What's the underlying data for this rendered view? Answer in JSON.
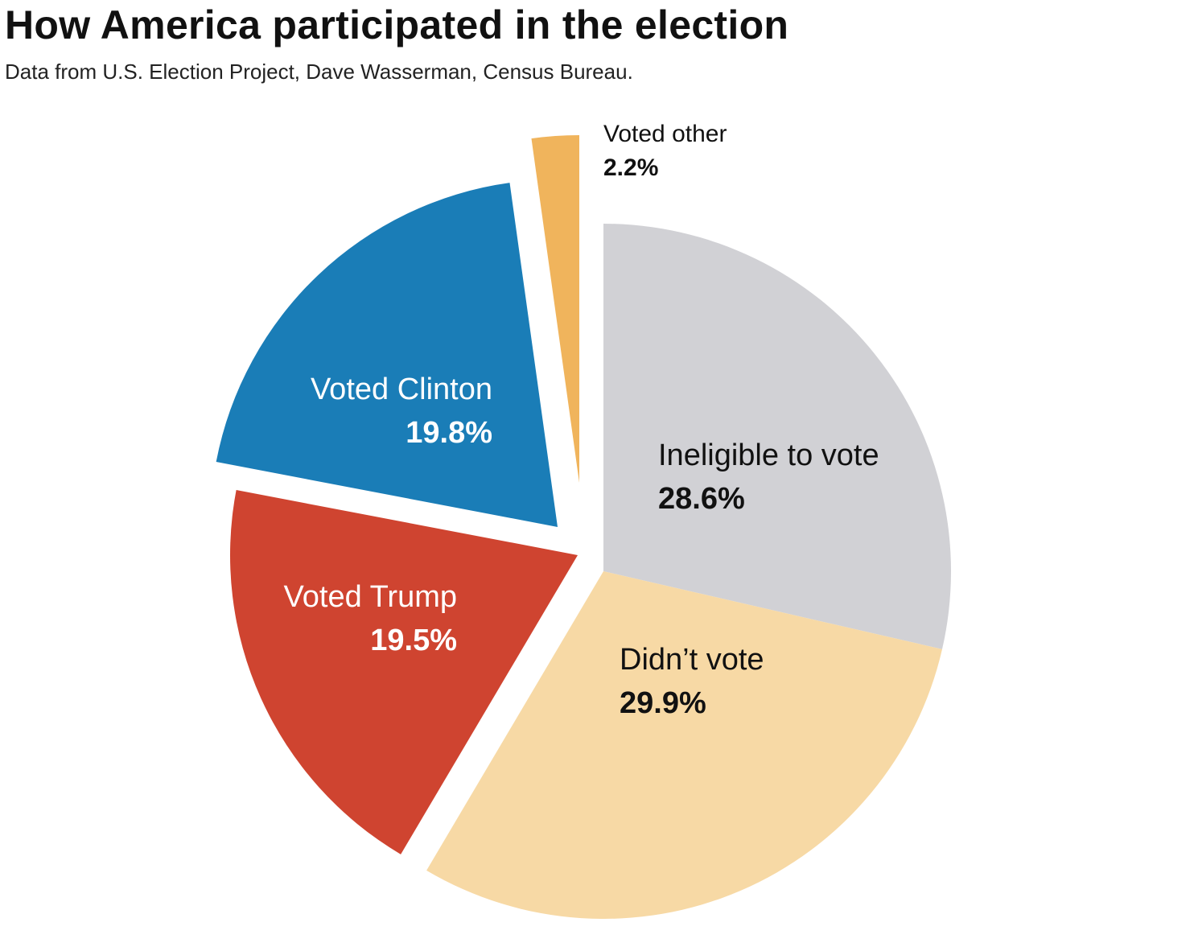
{
  "chart_data": {
    "type": "pie",
    "title": "How America participated in the election",
    "subtitle": "Data from U.S. Election Project, Dave Wasserman, Census Bureau.",
    "slices": [
      {
        "label": "Ineligible to vote",
        "value": 28.6,
        "value_label": "28.6%",
        "color": "#d1d1d5",
        "exploded": false
      },
      {
        "label": "Didn’t vote",
        "value": 29.9,
        "value_label": "29.9%",
        "color": "#f7d9a5",
        "exploded": false
      },
      {
        "label": "Voted Trump",
        "value": 19.5,
        "value_label": "19.5%",
        "color": "#cf4430",
        "exploded": true
      },
      {
        "label": "Voted Clinton",
        "value": 19.8,
        "value_label": "19.8%",
        "color": "#1a7db7",
        "exploded": true
      },
      {
        "label": "Voted other",
        "value": 2.2,
        "value_label": "2.2%",
        "color": "#f0b45c",
        "exploded": true
      }
    ]
  }
}
